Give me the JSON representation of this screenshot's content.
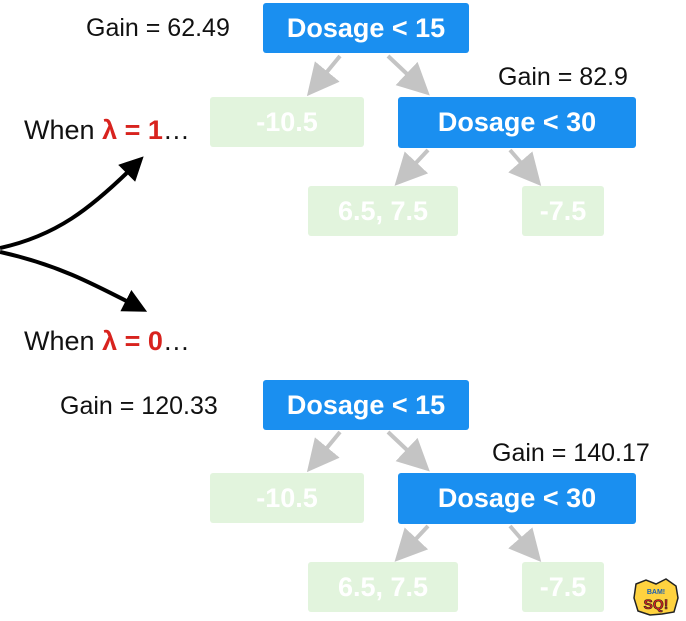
{
  "tree1": {
    "when_prefix": "When",
    "lambda_symbol": "λ",
    "lambda_eq": " = 1",
    "ellipsis": "…",
    "root_gain": "Gain = 62.49",
    "root_label": "Dosage < 15",
    "right_gain": "Gain =  82.9",
    "right_label": "Dosage < 30",
    "leaf_left": "-10.5",
    "leaf_mid": "6.5, 7.5",
    "leaf_right": "-7.5"
  },
  "tree2": {
    "when_prefix": "When",
    "lambda_symbol": "λ",
    "lambda_eq": " = 0",
    "ellipsis": "…",
    "root_gain": "Gain = 120.33",
    "root_label": "Dosage < 15",
    "right_gain": "Gain = 140.17",
    "right_label": "Dosage < 30",
    "leaf_left": "-10.5",
    "leaf_mid": "6.5, 7.5",
    "leaf_right": "-7.5"
  },
  "logo": {
    "text": "BAM!"
  },
  "colors": {
    "split_node": "#1a8ff0",
    "leaf_node": "#e2f4dd",
    "lambda": "#d8231e",
    "edge": "#c4c4c4"
  }
}
